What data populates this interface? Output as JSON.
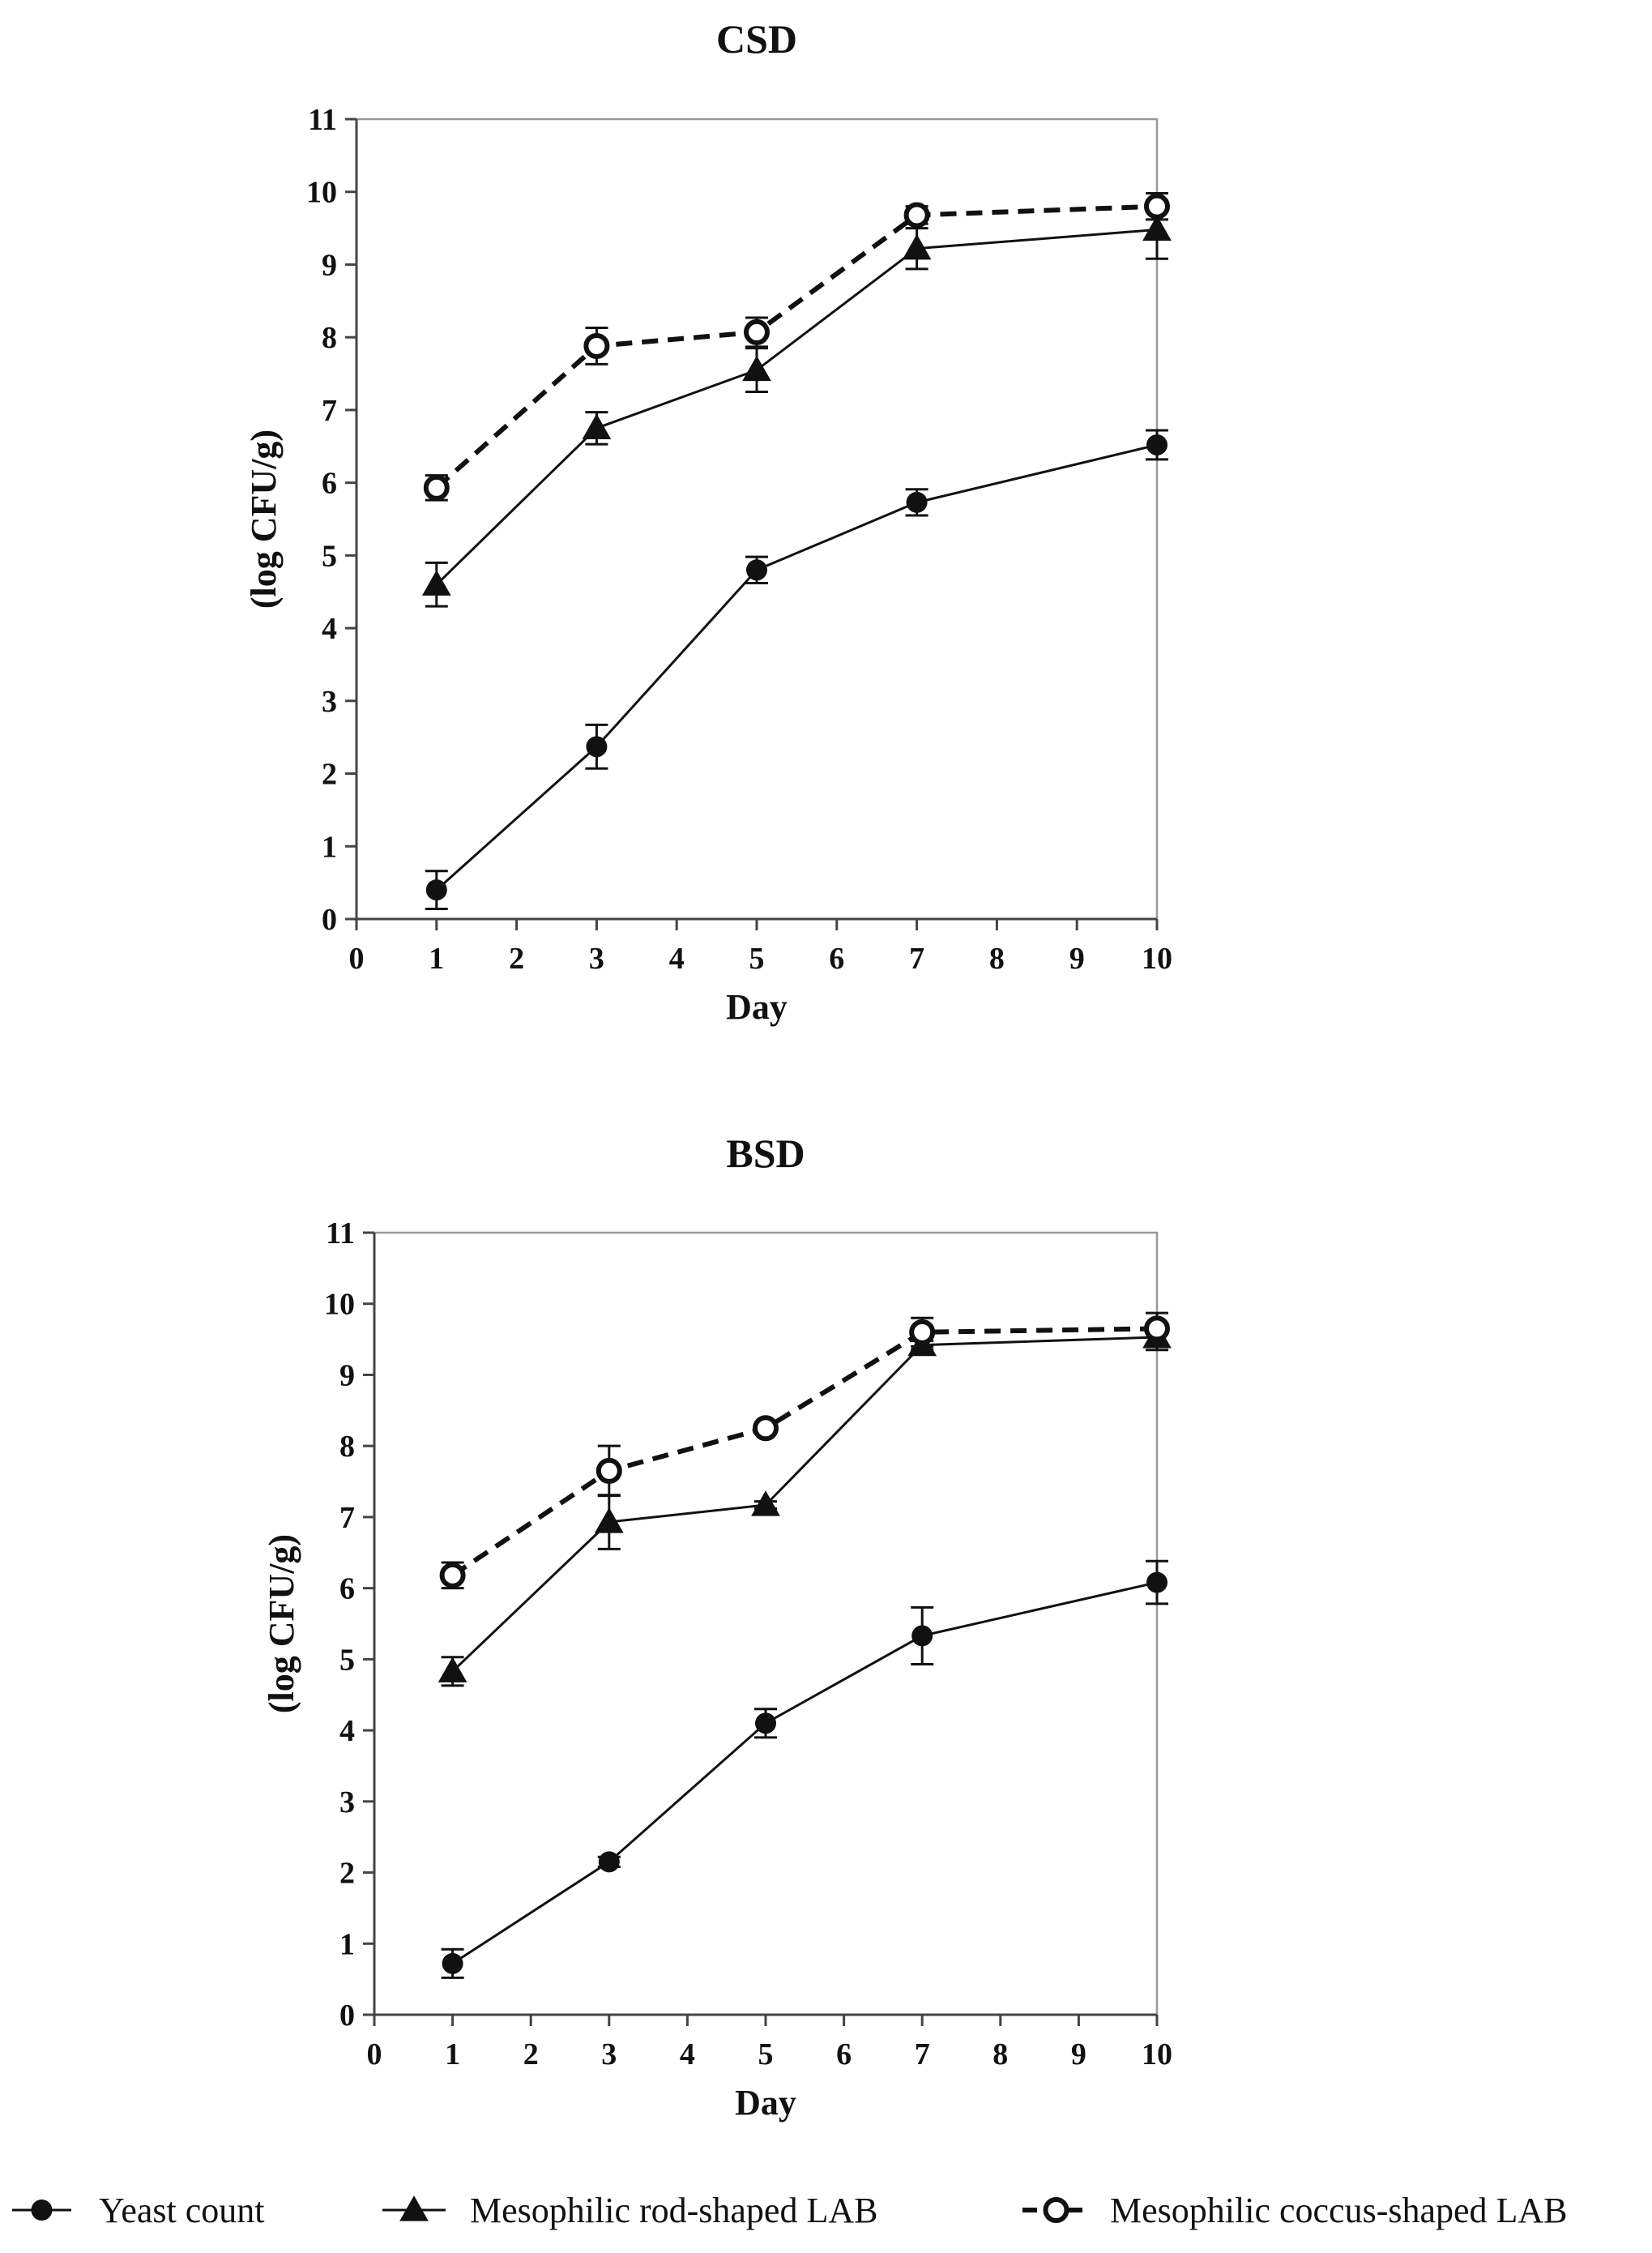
{
  "chart_data": [
    {
      "type": "line",
      "title": "CSD",
      "xlabel": "Day",
      "ylabel": "(log CFU/g)",
      "xlim": [
        0,
        10
      ],
      "ylim": [
        0,
        11
      ],
      "xticks": [
        0,
        1,
        2,
        3,
        4,
        5,
        6,
        7,
        8,
        9,
        10
      ],
      "yticks": [
        0,
        1,
        2,
        3,
        4,
        5,
        6,
        7,
        8,
        9,
        10,
        11
      ],
      "x": [
        1,
        3,
        5,
        7,
        10
      ],
      "grid": false,
      "series": [
        {
          "name": "Yeast count",
          "marker": "filled-circle",
          "line": "solid",
          "values": [
            0.4,
            2.37,
            4.8,
            5.73,
            6.52
          ],
          "errors": [
            0.26,
            0.3,
            0.18,
            0.18,
            0.2
          ]
        },
        {
          "name": "Mesophilic rod-shaped LAB",
          "marker": "filled-triangle",
          "line": "solid",
          "values": [
            4.6,
            6.75,
            7.55,
            9.22,
            9.48
          ],
          "errors": [
            0.3,
            0.22,
            0.3,
            0.28,
            0.4
          ]
        },
        {
          "name": "Mesophilic coccus-shaped LAB",
          "marker": "open-circle",
          "line": "dashed",
          "values": [
            5.93,
            7.88,
            8.07,
            9.68,
            9.8
          ],
          "errors": [
            0.17,
            0.25,
            0.2,
            0.12,
            0.18
          ]
        }
      ]
    },
    {
      "type": "line",
      "title": "BSD",
      "xlabel": "Day",
      "ylabel": "(log CFU/g)",
      "xlim": [
        0,
        10
      ],
      "ylim": [
        0,
        11
      ],
      "xticks": [
        0,
        1,
        2,
        3,
        4,
        5,
        6,
        7,
        8,
        9,
        10
      ],
      "yticks": [
        0,
        1,
        2,
        3,
        4,
        5,
        6,
        7,
        8,
        9,
        10,
        11
      ],
      "x": [
        1,
        3,
        5,
        7,
        10
      ],
      "grid": false,
      "series": [
        {
          "name": "Yeast count",
          "marker": "filled-circle",
          "line": "solid",
          "values": [
            0.72,
            2.15,
            4.1,
            5.33,
            6.08
          ],
          "errors": [
            0.2,
            0.07,
            0.2,
            0.4,
            0.3
          ]
        },
        {
          "name": "Mesophilic rod-shaped LAB",
          "marker": "filled-triangle",
          "line": "solid",
          "values": [
            4.83,
            6.93,
            7.17,
            9.42,
            9.53
          ],
          "errors": [
            0.2,
            0.38,
            0.05,
            0.06,
            0.18
          ]
        },
        {
          "name": "Mesophilic coccus-shaped LAB",
          "marker": "open-circle",
          "line": "dashed",
          "values": [
            6.18,
            7.65,
            8.25,
            9.6,
            9.65
          ],
          "errors": [
            0.18,
            0.35,
            0.05,
            0.2,
            0.22
          ]
        }
      ]
    }
  ],
  "legend": {
    "placement": "bottom",
    "items": [
      {
        "label": "Yeast count",
        "marker": "filled-circle",
        "line": "solid"
      },
      {
        "label": "Mesophilic rod-shaped LAB",
        "marker": "filled-triangle",
        "line": "solid"
      },
      {
        "label": "Mesophilic coccus-shaped LAB",
        "marker": "open-circle",
        "line": "dashed"
      }
    ]
  },
  "colors": {
    "ink": "#111111",
    "axis": "#999999",
    "background": "#ffffff"
  }
}
